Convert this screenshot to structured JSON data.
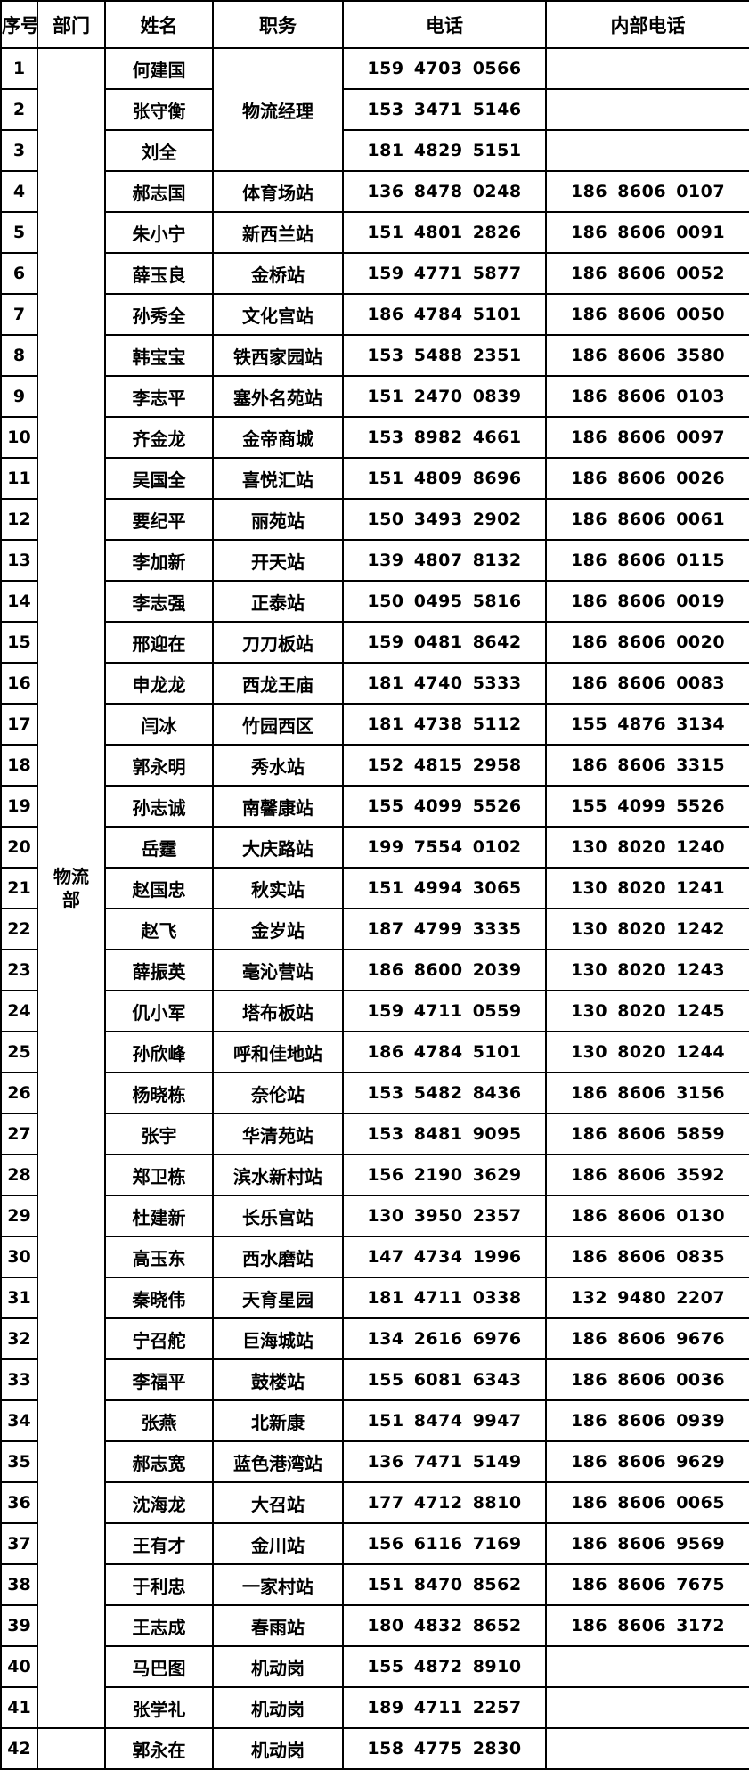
{
  "headers": [
    "序号",
    "部门",
    "姓名",
    "职务",
    "电话",
    "内部电话"
  ],
  "department": "物流部",
  "manager_role": "物流经理",
  "rows": [
    {
      "no": "1",
      "name": "何建国",
      "role": "",
      "phone": "159 4703 0566",
      "internal": ""
    },
    {
      "no": "2",
      "name": "张守衡",
      "role": "",
      "phone": "153 3471 5146",
      "internal": ""
    },
    {
      "no": "3",
      "name": "刘全",
      "role": "",
      "phone": "181 4829 5151",
      "internal": ""
    },
    {
      "no": "4",
      "name": "郝志国",
      "role": "体育场站",
      "phone": "136 8478 0248",
      "internal": "186 8606 0107"
    },
    {
      "no": "5",
      "name": "朱小宁",
      "role": "新西兰站",
      "phone": "151 4801 2826",
      "internal": "186 8606 0091"
    },
    {
      "no": "6",
      "name": "薛玉良",
      "role": "金桥站",
      "phone": "159 4771 5877",
      "internal": "186 8606 0052"
    },
    {
      "no": "7",
      "name": "孙秀全",
      "role": "文化宫站",
      "phone": "186 4784 5101",
      "internal": "186 8606 0050"
    },
    {
      "no": "8",
      "name": "韩宝宝",
      "role": "铁西家园站",
      "phone": "153 5488 2351",
      "internal": "186 8606 3580"
    },
    {
      "no": "9",
      "name": "李志平",
      "role": "塞外名苑站",
      "phone": "151 2470 0839",
      "internal": "186 8606 0103"
    },
    {
      "no": "10",
      "name": "齐金龙",
      "role": "金帝商城",
      "phone": "153 8982 4661",
      "internal": "186 8606 0097"
    },
    {
      "no": "11",
      "name": "吴国全",
      "role": "喜悦汇站",
      "phone": "151 4809 8696",
      "internal": "186 8606 0026"
    },
    {
      "no": "12",
      "name": "要纪平",
      "role": "丽苑站",
      "phone": "150 3493 2902",
      "internal": "186 8606 0061"
    },
    {
      "no": "13",
      "name": "李加新",
      "role": "开天站",
      "phone": "139 4807 8132",
      "internal": "186 8606 0115"
    },
    {
      "no": "14",
      "name": "李志强",
      "role": "正泰站",
      "phone": "150 0495 5816",
      "internal": "186 8606 0019"
    },
    {
      "no": "15",
      "name": "邢迎在",
      "role": "刀刀板站",
      "phone": "159 0481 8642",
      "internal": "186 8606 0020"
    },
    {
      "no": "16",
      "name": "申龙龙",
      "role": "西龙王庙",
      "phone": "181 4740 5333",
      "internal": "186 8606 0083"
    },
    {
      "no": "17",
      "name": "闫冰",
      "role": "竹园西区",
      "phone": "181 4738 5112",
      "internal": "155 4876 3134"
    },
    {
      "no": "18",
      "name": "郭永明",
      "role": "秀水站",
      "phone": "152 4815 2958",
      "internal": "186 8606 3315"
    },
    {
      "no": "19",
      "name": "孙志诚",
      "role": "南馨康站",
      "phone": "155 4099 5526",
      "internal": "155 4099 5526"
    },
    {
      "no": "20",
      "name": "岳霆",
      "role": "大庆路站",
      "phone": "199 7554 0102",
      "internal": "130 8020 1240"
    },
    {
      "no": "21",
      "name": "赵国忠",
      "role": "秋实站",
      "phone": "151 4994 3065",
      "internal": "130 8020 1241"
    },
    {
      "no": "22",
      "name": "赵飞",
      "role": "金岁站",
      "phone": "187 4799 3335",
      "internal": "130 8020 1242"
    },
    {
      "no": "23",
      "name": "薛振英",
      "role": "毫沁营站",
      "phone": "186 8600 2039",
      "internal": "130 8020 1243"
    },
    {
      "no": "24",
      "name": "仉小军",
      "role": "塔布板站",
      "phone": "159 4711 0559",
      "internal": "130 8020 1245"
    },
    {
      "no": "25",
      "name": "孙欣峰",
      "role": "呼和佳地站",
      "phone": "186 4784 5101",
      "internal": "130 8020 1244"
    },
    {
      "no": "26",
      "name": "杨晓栋",
      "role": "奈伦站",
      "phone": "153 5482 8436",
      "internal": "186 8606 3156"
    },
    {
      "no": "27",
      "name": "张宇",
      "role": "华清苑站",
      "phone": "153 8481 9095",
      "internal": "186 8606 5859"
    },
    {
      "no": "28",
      "name": "郑卫栋",
      "role": "滨水新村站",
      "phone": "156 2190 3629",
      "internal": "186 8606 3592"
    },
    {
      "no": "29",
      "name": "杜建新",
      "role": "长乐宫站",
      "phone": "130 3950 2357",
      "internal": "186 8606 0130"
    },
    {
      "no": "30",
      "name": "高玉东",
      "role": "西水磨站",
      "phone": "147 4734 1996",
      "internal": "186 8606 0835"
    },
    {
      "no": "31",
      "name": "秦晓伟",
      "role": "天育星园",
      "phone": "181 4711 0338",
      "internal": "132 9480 2207"
    },
    {
      "no": "32",
      "name": "宁召舵",
      "role": "巨海城站",
      "phone": "134 2616 6976",
      "internal": "186 8606 9676"
    },
    {
      "no": "33",
      "name": "李福平",
      "role": "鼓楼站",
      "phone": "155 6081 6343",
      "internal": "186 8606 0036"
    },
    {
      "no": "34",
      "name": "张燕",
      "role": "北新康",
      "phone": "151 8474 9947",
      "internal": "186 8606 0939"
    },
    {
      "no": "35",
      "name": "郝志宽",
      "role": "蓝色港湾站",
      "phone": "136 7471 5149",
      "internal": "186 8606 9629"
    },
    {
      "no": "36",
      "name": "沈海龙",
      "role": "大召站",
      "phone": "177 4712 8810",
      "internal": "186 8606 0065"
    },
    {
      "no": "37",
      "name": "王有才",
      "role": "金川站",
      "phone": "156 6116 7169",
      "internal": "186 8606 9569"
    },
    {
      "no": "38",
      "name": "于利忠",
      "role": "一家村站",
      "phone": "151 8470 8562",
      "internal": "186 8606 7675"
    },
    {
      "no": "39",
      "name": "王志成",
      "role": "春雨站",
      "phone": "180 4832 8652",
      "internal": "186 8606 3172"
    },
    {
      "no": "40",
      "name": "马巴图",
      "role": "机动岗",
      "phone": "155 4872 8910",
      "internal": ""
    },
    {
      "no": "41",
      "name": "张学礼",
      "role": "机动岗",
      "phone": "189 4711 2257",
      "internal": ""
    },
    {
      "no": "42",
      "name": "郭永在",
      "role": "机动岗",
      "phone": "158 4775 2830",
      "internal": ""
    }
  ]
}
